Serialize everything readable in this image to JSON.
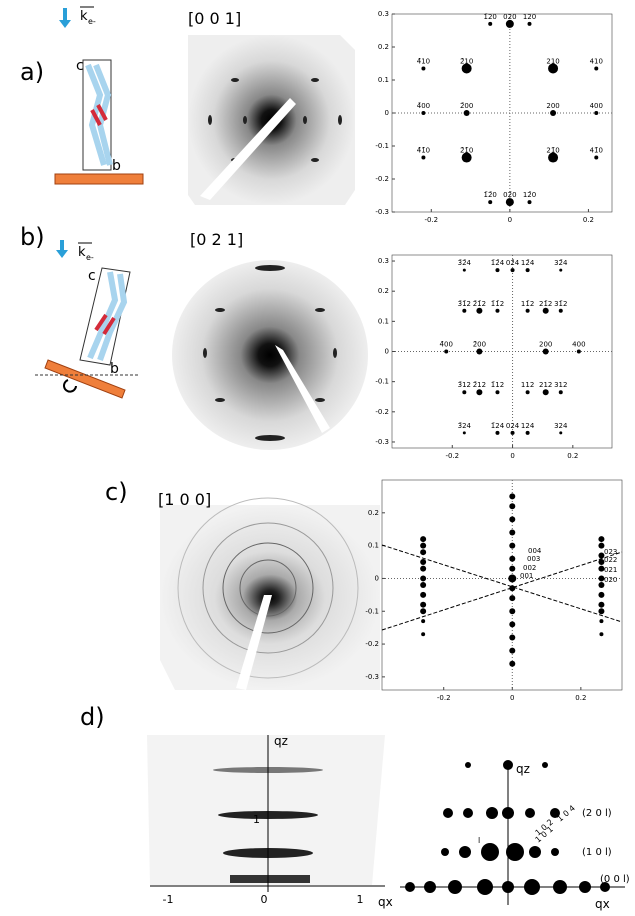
{
  "panels": [
    {
      "label": "a)",
      "zone_axis": "[0 0 1]",
      "sketch": {
        "beam": "k",
        "beam_sub": "e-",
        "axis_c": "c",
        "axis_b": "b"
      },
      "pattern": {
        "xlim": [
          -0.3,
          0.26
        ],
        "ylim": [
          -0.3,
          0.3
        ],
        "xticks": [
          -0.2,
          0.0,
          0.2
        ],
        "yticks": [
          0.3,
          0.2,
          0.1,
          0.0,
          -0.1,
          -0.2,
          -0.3
        ],
        "x": [
          -0.05,
          0,
          0.05,
          -0.22,
          -0.11,
          0.11,
          0.22,
          -0.22,
          -0.11,
          0.11,
          0.22,
          -0.22,
          -0.11,
          0.11,
          0.22,
          -0.05,
          0,
          0.05
        ],
        "y": [
          0.27,
          0.27,
          0.27,
          0.135,
          0.135,
          0.135,
          0.135,
          0,
          0,
          0,
          0,
          -0.135,
          -0.135,
          -0.135,
          -0.135,
          -0.27,
          -0.27,
          -0.27
        ],
        "size": [
          2,
          4,
          2,
          2,
          5,
          5,
          2,
          2,
          3,
          3,
          2,
          2,
          5,
          5,
          2,
          2,
          4,
          2
        ],
        "labels": [
          "1̄20",
          "020",
          "120",
          "4̄10",
          "2̄10",
          "210",
          "410",
          "4̄00",
          "2̄00",
          "200",
          "400",
          "4̄1̄0",
          "2̄1̄0",
          "21̄0",
          "41̄0",
          "1̄2̄0",
          "02̄0",
          "12̄0"
        ]
      }
    },
    {
      "label": "b)",
      "zone_axis": "[0 2 1]",
      "sketch": {
        "beam": "k",
        "beam_sub": "e-",
        "axis_c": "c",
        "axis_b": "b"
      },
      "pattern": {
        "xlim": [
          -0.4,
          0.33
        ],
        "ylim": [
          -0.32,
          0.32
        ],
        "xticks": [
          -0.2,
          0.0,
          0.2
        ],
        "yticks": [
          0.3,
          0.2,
          0.1,
          0.0,
          -0.1,
          -0.2,
          -0.3
        ],
        "x": [
          -0.16,
          -0.05,
          0,
          0.05,
          0.16,
          -0.16,
          -0.11,
          -0.05,
          0.05,
          0.11,
          0.16,
          -0.22,
          -0.11,
          0.11,
          0.22,
          -0.16,
          -0.11,
          -0.05,
          0.05,
          0.11,
          0.16,
          -0.16,
          -0.05,
          0,
          0.05,
          0.16
        ],
        "y": [
          0.27,
          0.27,
          0.27,
          0.27,
          0.27,
          0.135,
          0.135,
          0.135,
          0.135,
          0.135,
          0.135,
          0,
          0,
          0,
          0,
          -0.135,
          -0.135,
          -0.135,
          -0.135,
          -0.135,
          -0.135,
          -0.27,
          -0.27,
          -0.27,
          -0.27,
          -0.27
        ],
        "size": [
          1.5,
          2,
          2,
          2,
          1.5,
          2,
          3,
          2,
          2,
          3,
          2,
          2,
          3,
          3,
          2,
          2,
          3,
          2,
          2,
          3,
          2,
          1.5,
          2,
          2,
          2,
          1.5
        ],
        "labels": [
          "3̄2̄4",
          "1̄2̄4",
          "02̄4",
          "12̄4",
          "32̄4",
          "3̄1̄2",
          "2̄1̄2",
          "1̄1̄2",
          "11̄2",
          "21̄2",
          "31̄2",
          "4̄00",
          "2̄00",
          "200",
          "400",
          "3̄12",
          "2̄12",
          "1̄12",
          "112",
          "212",
          "312",
          "3̄24",
          "1̄24",
          "024",
          "124",
          "324"
        ]
      }
    },
    {
      "label": "c)",
      "zone_axis": "[1 0 0]",
      "pattern": {
        "xlim": [
          -0.38,
          0.32
        ],
        "ylim": [
          -0.34,
          0.3
        ],
        "xticks": [
          -0.2,
          0.0,
          0.2
        ],
        "yticks": [
          0.2,
          0.1,
          0.0,
          -0.1,
          -0.2,
          -0.3
        ],
        "x": [
          -0.26,
          -0.26,
          -0.26,
          -0.26,
          -0.26,
          -0.26,
          -0.26,
          -0.26,
          -0.26,
          -0.26,
          -0.26,
          -0.26,
          0,
          0,
          0,
          0,
          0,
          0,
          0,
          0,
          0,
          0,
          0,
          0,
          0,
          0,
          0,
          0.26,
          0.26,
          0.26,
          0.26,
          0.26,
          0.26,
          0.26,
          0.26,
          0.26,
          0.26,
          0.26,
          0.26
        ],
        "y": [
          0.12,
          0.1,
          0.08,
          0.05,
          0.03,
          0.0,
          -0.02,
          -0.05,
          -0.08,
          -0.1,
          -0.13,
          -0.17,
          0.25,
          0.22,
          0.18,
          0.14,
          0.1,
          0.06,
          0.03,
          0.0,
          -0.03,
          -0.06,
          -0.1,
          -0.14,
          -0.18,
          -0.22,
          -0.26,
          0.12,
          0.1,
          0.07,
          0.05,
          0.03,
          0.0,
          -0.02,
          -0.05,
          -0.08,
          -0.1,
          -0.13,
          -0.17
        ],
        "size": [
          3,
          3,
          3,
          3,
          3,
          3,
          3,
          3,
          3,
          3,
          2,
          2,
          3,
          3,
          3,
          3,
          3,
          3,
          3,
          4,
          3,
          3,
          3,
          3,
          3,
          3,
          3,
          3,
          3,
          3,
          3,
          3,
          3,
          3,
          3,
          3,
          3,
          2,
          2
        ],
        "annotations": [
          "004",
          "003",
          "002",
          "001",
          "023",
          "022",
          "021",
          "020"
        ]
      }
    },
    {
      "label": "d)",
      "qz": "qz",
      "qx": "qx",
      "qz_sub": "z",
      "qx_sub": "x",
      "image_xticks": [
        "-1",
        "0",
        "1"
      ],
      "image_yticks": [
        "1"
      ],
      "spot_labels": [
        "(2 0 l)",
        "(1 0 l)",
        "(0 0 l)",
        "1 0 1",
        "1 0 2",
        "1 0 4",
        "l"
      ]
    }
  ]
}
